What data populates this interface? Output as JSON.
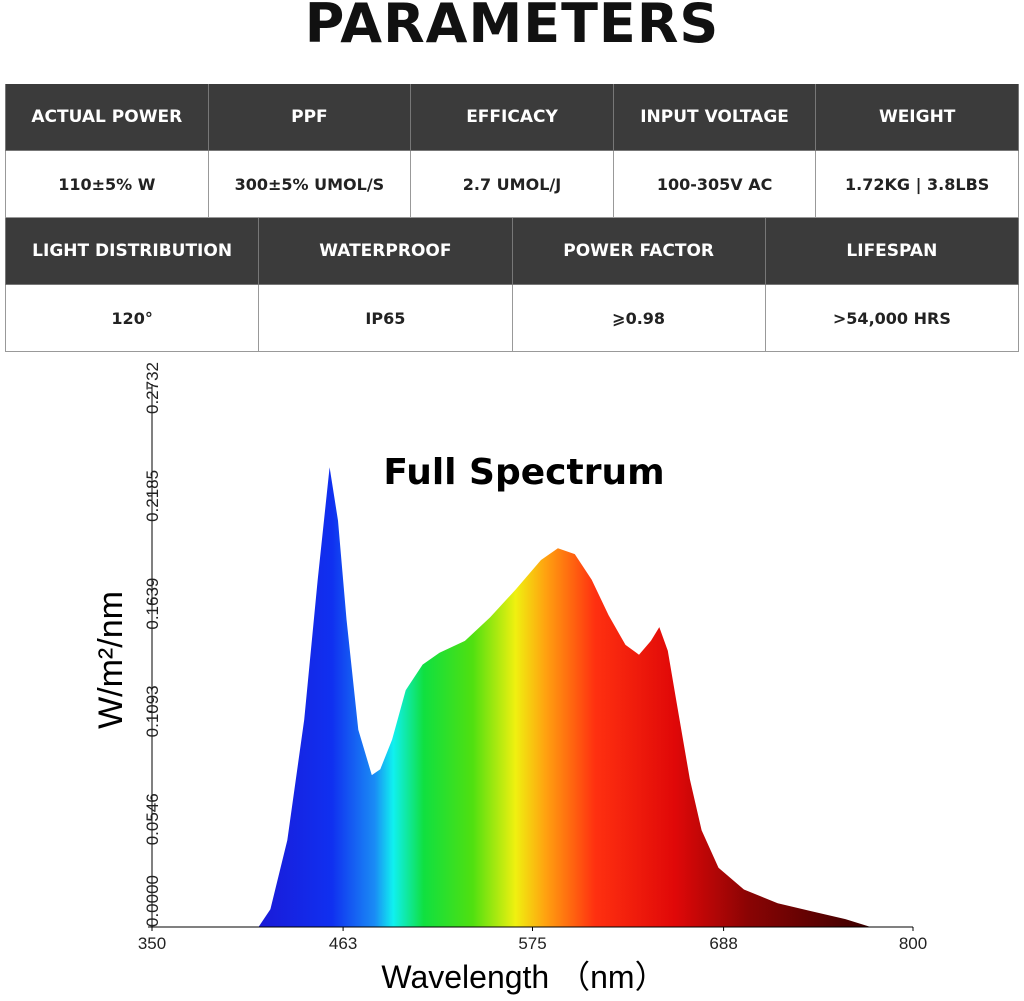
{
  "header": {
    "title": "PARAMETERS"
  },
  "table": {
    "rows": [
      [
        "ACTUAL POWER",
        "PPF",
        "EFFICACY",
        "INPUT VOLTAGE",
        "WEIGHT"
      ],
      [
        "110±5% W",
        "300±5% UMOL/S",
        "2.7 UMOL/J",
        "100-305V AC",
        "1.72KG | 3.8LBS"
      ],
      [
        "LIGHT DISTRIBUTION",
        "WATERPROOF",
        "POWER FACTOR",
        "LIFESPAN"
      ],
      [
        "120°",
        "IP65",
        "⩾0.98",
        ">54,000 HRS"
      ]
    ]
  },
  "chart_data": {
    "type": "area",
    "title": "Full Spectrum",
    "y_label": "W/m²/nm",
    "x_label": "Wavelength （nm）",
    "x": [
      413,
      420,
      430,
      440,
      448,
      455,
      460,
      465,
      472,
      480,
      485,
      492,
      500,
      510,
      520,
      535,
      550,
      565,
      580,
      590,
      600,
      610,
      620,
      630,
      638,
      645,
      650,
      655,
      660,
      668,
      675,
      685,
      700,
      720,
      740,
      760,
      775
    ],
    "values": [
      0,
      0.009,
      0.044,
      0.105,
      0.176,
      0.233,
      0.206,
      0.156,
      0.1,
      0.077,
      0.08,
      0.095,
      0.12,
      0.133,
      0.139,
      0.145,
      0.157,
      0.171,
      0.186,
      0.192,
      0.189,
      0.176,
      0.158,
      0.143,
      0.138,
      0.145,
      0.152,
      0.14,
      0.115,
      0.075,
      0.049,
      0.03,
      0.019,
      0.012,
      0.008,
      0.004,
      0
    ],
    "xlim": [
      350,
      800
    ],
    "xticks": [
      350,
      463,
      575,
      688,
      800
    ],
    "ylim": [
      0,
      0.2732
    ],
    "yticks": [
      {
        "value": 0,
        "label": "0.0000"
      },
      0.0546,
      0.1093,
      0.1639,
      0.2185,
      0.2732
    ]
  }
}
